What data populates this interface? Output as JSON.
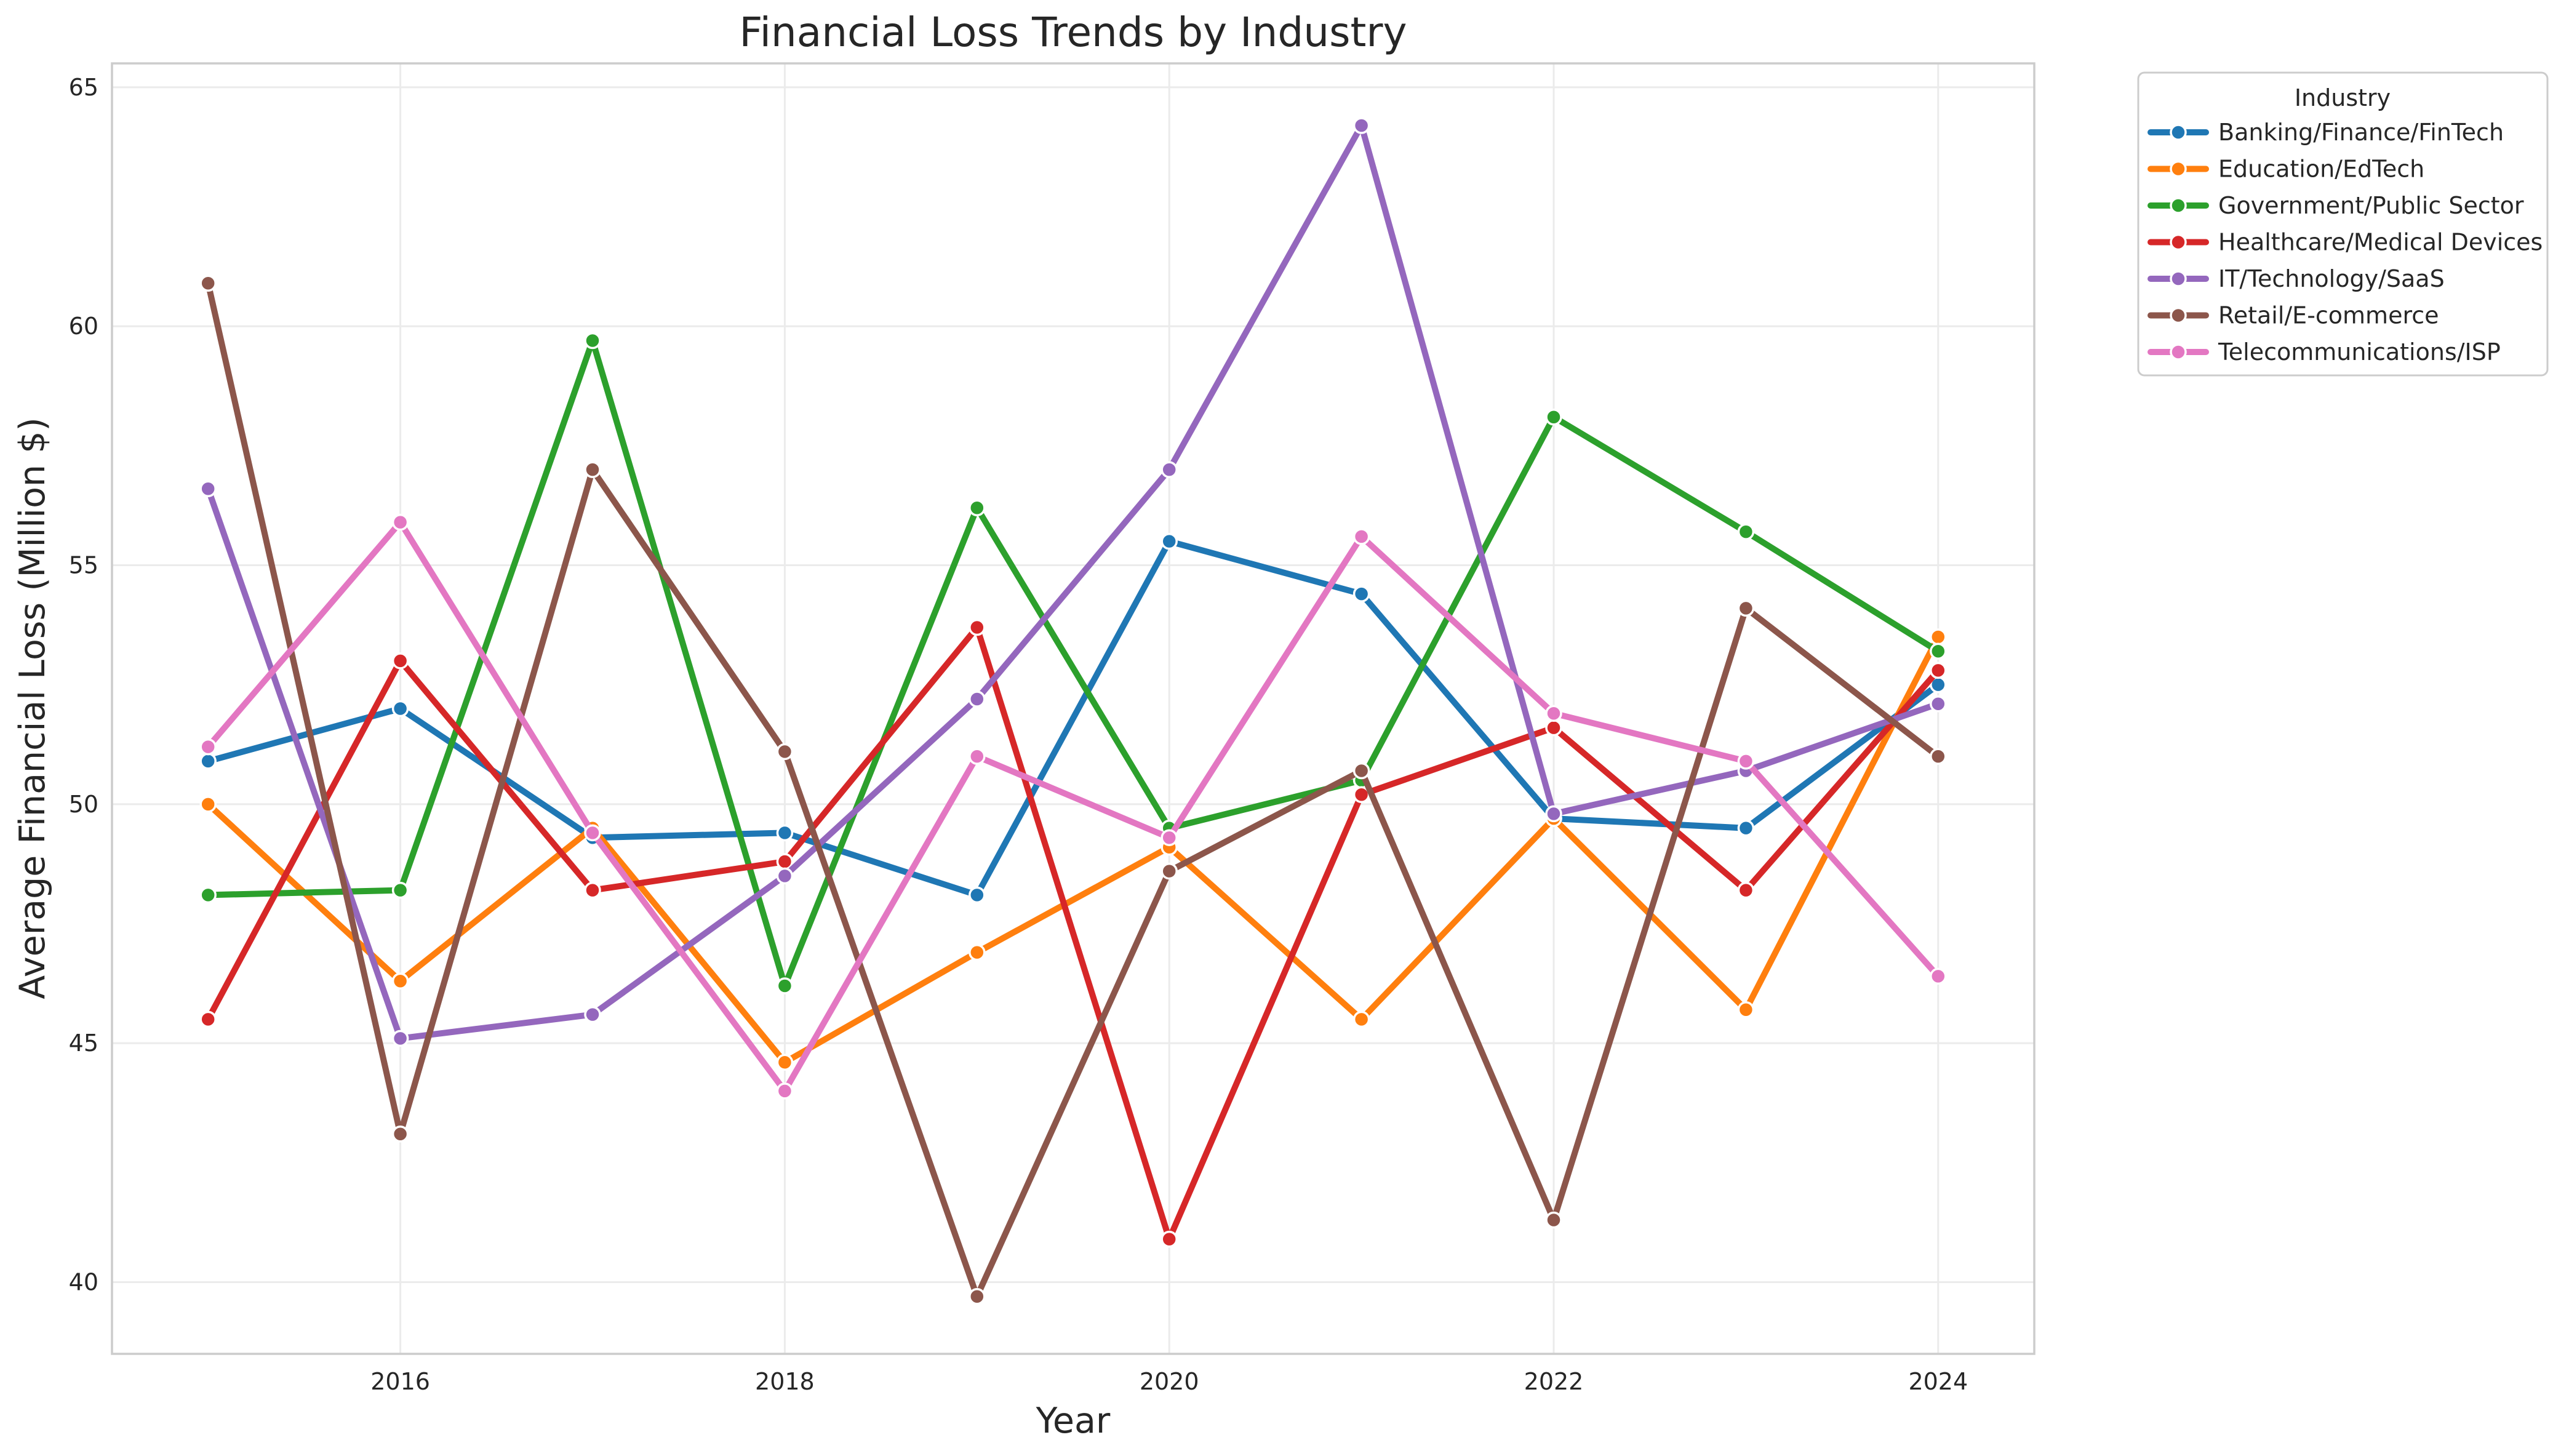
{
  "chart_data": {
    "type": "line",
    "title": "Financial Loss Trends by Industry",
    "xlabel": "Year",
    "ylabel": "Average Financial Loss (Million $)",
    "x": [
      2015,
      2016,
      2017,
      2018,
      2019,
      2020,
      2021,
      2022,
      2023,
      2024
    ],
    "xlim": [
      2014.5,
      2024.5
    ],
    "ylim": [
      38.5,
      65.5
    ],
    "xticks": [
      2016,
      2018,
      2020,
      2022,
      2024
    ],
    "yticks": [
      40,
      45,
      50,
      55,
      60,
      65
    ],
    "grid": true,
    "legend": {
      "title": "Industry",
      "placement": "outside upper right"
    },
    "series": [
      {
        "name": "Banking/Finance/FinTech",
        "color": "#1f77b4",
        "values": [
          50.9,
          52.0,
          49.3,
          49.4,
          48.1,
          55.5,
          54.4,
          49.7,
          49.5,
          52.5
        ]
      },
      {
        "name": "Education/EdTech",
        "color": "#ff7f0e",
        "values": [
          50.0,
          46.3,
          49.5,
          44.6,
          46.9,
          49.1,
          45.5,
          49.7,
          45.7,
          53.5
        ]
      },
      {
        "name": "Government/Public Sector",
        "color": "#2ca02c",
        "values": [
          48.1,
          48.2,
          59.7,
          46.2,
          56.2,
          49.5,
          50.5,
          58.1,
          55.7,
          53.2
        ]
      },
      {
        "name": "Healthcare/Medical Devices",
        "color": "#d62728",
        "values": [
          45.5,
          53.0,
          48.2,
          48.8,
          53.7,
          40.9,
          50.2,
          51.6,
          48.2,
          52.8
        ]
      },
      {
        "name": "IT/Technology/SaaS",
        "color": "#9467bd",
        "values": [
          56.6,
          45.1,
          45.6,
          48.5,
          52.2,
          57.0,
          64.2,
          49.8,
          50.7,
          52.1
        ]
      },
      {
        "name": "Retail/E-commerce",
        "color": "#8c564b",
        "values": [
          60.9,
          43.1,
          57.0,
          51.1,
          39.7,
          48.6,
          50.7,
          41.3,
          54.1,
          51.0
        ]
      },
      {
        "name": "Telecommunications/ISP",
        "color": "#e377c2",
        "values": [
          51.2,
          55.9,
          49.4,
          44.0,
          51.0,
          49.3,
          55.6,
          51.9,
          50.9,
          46.4
        ]
      }
    ]
  }
}
